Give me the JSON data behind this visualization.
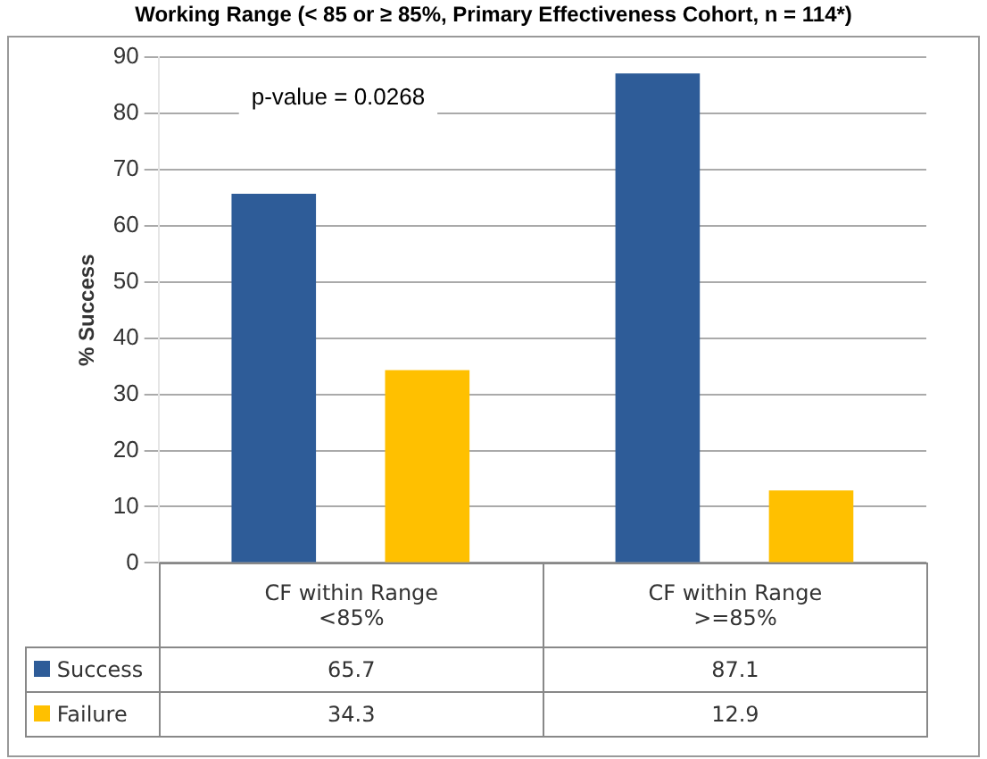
{
  "chart_data": {
    "type": "bar",
    "title": "Working Range (< 85 or ≥ 85%, Primary Effectiveness Cohort, n = 114*)",
    "ylabel": "% Success",
    "categories": [
      "CF within Range\n<85%",
      "CF within Range\n>=85%"
    ],
    "series": [
      {
        "name": "Success",
        "color": "#2e5c98",
        "values": [
          65.7,
          87.1
        ]
      },
      {
        "name": "Failure",
        "color": "#ffc000",
        "values": [
          34.3,
          12.9
        ]
      }
    ],
    "ylim": [
      0,
      90
    ],
    "yticks": [
      0,
      10,
      20,
      30,
      40,
      50,
      60,
      70,
      80,
      90
    ],
    "grid": "y",
    "legend": "bottom",
    "data_labels": true,
    "annotations": [
      "p-value = 0.0268"
    ]
  }
}
